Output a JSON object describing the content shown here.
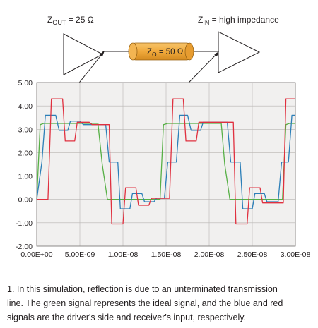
{
  "diagram": {
    "driver_label_prefix": "Z",
    "driver_label_sub": "OUT",
    "driver_label_suffix": " = 25 Ω",
    "line_label_prefix": "Z",
    "line_label_sub": "O",
    "line_label_suffix": " = 50 Ω",
    "receiver_label_prefix": "Z",
    "receiver_label_sub": "IN",
    "receiver_label_suffix": " = high impedance"
  },
  "caption": {
    "line1": "1. In this simulation, reflection is due to an unterminated transmission",
    "line2": "line. The green signal represents the ideal signal, and the blue and red",
    "line3": "signals are the driver's side and receiver's input, respectively."
  },
  "colors": {
    "plot_background": "#f1f0ef",
    "grid": "#b8b5b2",
    "ideal": "#57b046",
    "driver": "#2c7fb8",
    "receiver": "#e0303f",
    "cable": "#f0a93c",
    "cable_dark": "#d48a1f"
  },
  "chart_data": {
    "type": "line",
    "title": "",
    "xlabel": "",
    "ylabel": "",
    "xlim": [
      0,
      3e-08
    ],
    "ylim": [
      -2.0,
      5.0
    ],
    "grid": true,
    "x_tick_labels": [
      "0.00E+00",
      "5.00E-09",
      "1.00E-08",
      "1.50E-08",
      "2.00E-08",
      "2.50E-08",
      "3.00E-08"
    ],
    "x_tick_values": [
      0,
      5e-09,
      1e-08,
      1.5e-08,
      2e-08,
      2.5e-08,
      3e-08
    ],
    "y_tick_labels": [
      "5.00",
      "4.00",
      "3.00",
      "2.00",
      "1.00",
      "0.00",
      "-1.00",
      "-2.00"
    ],
    "y_tick_values": [
      5.0,
      4.0,
      3.0,
      2.0,
      1.0,
      0.0,
      -1.0,
      -2.0
    ],
    "series": [
      {
        "key": "ideal",
        "x": [
          0,
          4e-10,
          8e-10,
          7.1e-09,
          7.6e-09,
          8.2e-09,
          1.43e-08,
          1.47e-08,
          1.52e-08,
          2.14e-08,
          2.18e-08,
          2.24e-08,
          2.85e-08,
          2.89e-08,
          2.93e-08,
          3e-08
        ],
        "values": [
          0.0,
          3.2,
          3.25,
          3.25,
          1.5,
          0.0,
          0.0,
          3.2,
          3.25,
          3.25,
          1.5,
          0.0,
          0.0,
          3.2,
          3.25,
          3.25
        ]
      },
      {
        "key": "driver",
        "x": [
          0,
          6e-10,
          1e-09,
          2.2e-09,
          2.6e-09,
          3.6e-09,
          3.9e-09,
          5e-09,
          5.4e-09,
          8e-09,
          8.4e-09,
          9.4e-09,
          9.7e-09,
          1.08e-08,
          1.11e-08,
          1.22e-08,
          1.25e-08,
          1.36e-08,
          1.39e-08,
          1.48e-08,
          1.52e-08,
          1.62e-08,
          1.66e-08,
          1.75e-08,
          1.79e-08,
          1.9e-08,
          1.93e-08,
          2.21e-08,
          2.25e-08,
          2.36e-08,
          2.39e-08,
          2.5e-08,
          2.53e-08,
          2.64e-08,
          2.67e-08,
          2.8e-08,
          2.84e-08,
          2.92e-08,
          2.96e-08,
          3e-08
        ],
        "values": [
          0.0,
          1.6,
          3.6,
          3.6,
          2.95,
          2.95,
          3.35,
          3.35,
          3.2,
          3.2,
          1.6,
          1.6,
          -0.4,
          -0.4,
          0.25,
          0.25,
          -0.1,
          -0.1,
          0.05,
          0.05,
          1.6,
          1.6,
          3.6,
          3.6,
          2.95,
          2.95,
          3.3,
          3.3,
          1.6,
          1.6,
          -0.4,
          -0.4,
          0.25,
          0.25,
          -0.1,
          -0.1,
          1.6,
          1.6,
          3.6,
          3.6
        ]
      },
      {
        "key": "receiver",
        "x": [
          0,
          1.3e-09,
          1.7e-09,
          3e-09,
          3.3e-09,
          4.4e-09,
          4.7e-09,
          6.1e-09,
          6.4e-09,
          8.4e-09,
          8.7e-09,
          1e-08,
          1.03e-08,
          1.15e-08,
          1.18e-08,
          1.3e-08,
          1.33e-08,
          1.44e-08,
          1.54e-08,
          1.58e-08,
          1.7e-08,
          1.73e-08,
          1.85e-08,
          1.88e-08,
          2.28e-08,
          2.31e-08,
          2.44e-08,
          2.47e-08,
          2.59e-08,
          2.62e-08,
          2.86e-08,
          2.89e-08,
          3e-08
        ],
        "values": [
          0.0,
          0.0,
          4.3,
          4.3,
          2.5,
          2.5,
          3.3,
          3.3,
          3.2,
          3.2,
          -1.05,
          -1.05,
          0.5,
          0.5,
          -0.25,
          -0.25,
          0.05,
          0.05,
          0.05,
          4.3,
          4.3,
          2.5,
          2.5,
          3.3,
          3.3,
          -1.05,
          -1.05,
          0.5,
          0.5,
          -0.15,
          -0.15,
          4.3,
          4.3
        ]
      }
    ]
  }
}
